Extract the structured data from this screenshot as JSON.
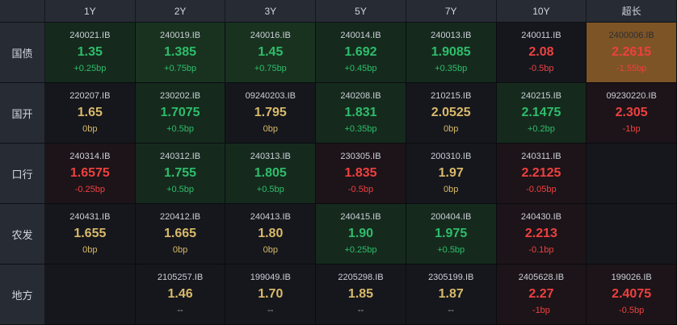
{
  "board_title": "bond-yield-board",
  "columns": [
    "1Y",
    "2Y",
    "3Y",
    "5Y",
    "7Y",
    "10Y",
    "超长"
  ],
  "column_keys": [
    "1y",
    "2y",
    "3y",
    "5y",
    "7y",
    "10y",
    "ultra-long"
  ],
  "colors": {
    "up": "#2ebd6b",
    "down": "#ef4040",
    "flat": "#d9b96a",
    "muted": "#a8adb5",
    "highlight_bg": "#7d5426",
    "header_bg": "#272b33",
    "cell_bg": "#15171c"
  },
  "rows": [
    {
      "label": "国债",
      "key": "treasury",
      "cells": [
        {
          "code": "240021.IB",
          "value": "1.35",
          "change": "+0.25bp",
          "trend": "up",
          "tint": "up"
        },
        {
          "code": "240019.IB",
          "value": "1.385",
          "change": "+0.75bp",
          "trend": "up",
          "tint": "up2"
        },
        {
          "code": "240016.IB",
          "value": "1.45",
          "change": "+0.75bp",
          "trend": "up",
          "tint": "up2"
        },
        {
          "code": "240014.IB",
          "value": "1.692",
          "change": "+0.45bp",
          "trend": "up",
          "tint": "up"
        },
        {
          "code": "240013.IB",
          "value": "1.9085",
          "change": "+0.35bp",
          "trend": "up",
          "tint": "up"
        },
        {
          "code": "240011.IB",
          "value": "2.08",
          "change": "-0.5bp",
          "trend": "down",
          "tint": "none"
        },
        {
          "code": "2400006.IB",
          "value": "2.2615",
          "change": "-1.55bp",
          "trend": "down",
          "tint": "hl"
        }
      ]
    },
    {
      "label": "国开",
      "key": "cdb",
      "cells": [
        {
          "code": "220207.IB",
          "value": "1.65",
          "change": "0bp",
          "trend": "flat",
          "tint": "none"
        },
        {
          "code": "230202.IB",
          "value": "1.7075",
          "change": "+0.5bp",
          "trend": "up",
          "tint": "up"
        },
        {
          "code": "09240203.IB",
          "value": "1.795",
          "change": "0bp",
          "trend": "flat",
          "tint": "none"
        },
        {
          "code": "240208.IB",
          "value": "1.831",
          "change": "+0.35bp",
          "trend": "up",
          "tint": "up"
        },
        {
          "code": "210215.IB",
          "value": "2.0525",
          "change": "0bp",
          "trend": "flat",
          "tint": "none"
        },
        {
          "code": "240215.IB",
          "value": "2.1475",
          "change": "+0.2bp",
          "trend": "up",
          "tint": "up"
        },
        {
          "code": "09230220.IB",
          "value": "2.305",
          "change": "-1bp",
          "trend": "down",
          "tint": "down"
        }
      ]
    },
    {
      "label": "口行",
      "key": "exim",
      "cells": [
        {
          "code": "240314.IB",
          "value": "1.6575",
          "change": "-0.25bp",
          "trend": "down",
          "tint": "down"
        },
        {
          "code": "240312.IB",
          "value": "1.755",
          "change": "+0.5bp",
          "trend": "up",
          "tint": "up"
        },
        {
          "code": "240313.IB",
          "value": "1.805",
          "change": "+0.5bp",
          "trend": "up",
          "tint": "up"
        },
        {
          "code": "230305.IB",
          "value": "1.835",
          "change": "-0.5bp",
          "trend": "down",
          "tint": "down"
        },
        {
          "code": "200310.IB",
          "value": "1.97",
          "change": "0bp",
          "trend": "flat",
          "tint": "none"
        },
        {
          "code": "240311.IB",
          "value": "2.2125",
          "change": "-0.05bp",
          "trend": "down",
          "tint": "down"
        },
        {
          "code": "",
          "value": "",
          "change": "",
          "trend": "flat",
          "tint": "none"
        }
      ]
    },
    {
      "label": "农发",
      "key": "adbc",
      "cells": [
        {
          "code": "240431.IB",
          "value": "1.655",
          "change": "0bp",
          "trend": "flat",
          "tint": "none"
        },
        {
          "code": "220412.IB",
          "value": "1.665",
          "change": "0bp",
          "trend": "flat",
          "tint": "none"
        },
        {
          "code": "240413.IB",
          "value": "1.80",
          "change": "0bp",
          "trend": "flat",
          "tint": "none"
        },
        {
          "code": "240415.IB",
          "value": "1.90",
          "change": "+0.25bp",
          "trend": "up",
          "tint": "up"
        },
        {
          "code": "200404.IB",
          "value": "1.975",
          "change": "+0.5bp",
          "trend": "up",
          "tint": "up"
        },
        {
          "code": "240430.IB",
          "value": "2.213",
          "change": "-0.1bp",
          "trend": "down",
          "tint": "down"
        },
        {
          "code": "",
          "value": "",
          "change": "",
          "trend": "flat",
          "tint": "none"
        }
      ]
    },
    {
      "label": "地方",
      "key": "local",
      "cells": [
        {
          "code": "",
          "value": "",
          "change": "",
          "trend": "flat",
          "tint": "none"
        },
        {
          "code": "2105257.IB",
          "value": "1.46",
          "change": "--",
          "trend": "flat",
          "change_trend": "muted",
          "tint": "none"
        },
        {
          "code": "199049.IB",
          "value": "1.70",
          "change": "--",
          "trend": "flat",
          "change_trend": "muted",
          "tint": "none"
        },
        {
          "code": "2205298.IB",
          "value": "1.85",
          "change": "--",
          "trend": "flat",
          "change_trend": "muted",
          "tint": "none"
        },
        {
          "code": "2305199.IB",
          "value": "1.87",
          "change": "--",
          "trend": "flat",
          "change_trend": "muted",
          "tint": "none"
        },
        {
          "code": "2405628.IB",
          "value": "2.27",
          "change": "-1bp",
          "trend": "down",
          "tint": "down"
        },
        {
          "code": "199026.IB",
          "value": "2.4075",
          "change": "-0.5bp",
          "trend": "down",
          "tint": "down"
        }
      ]
    }
  ]
}
